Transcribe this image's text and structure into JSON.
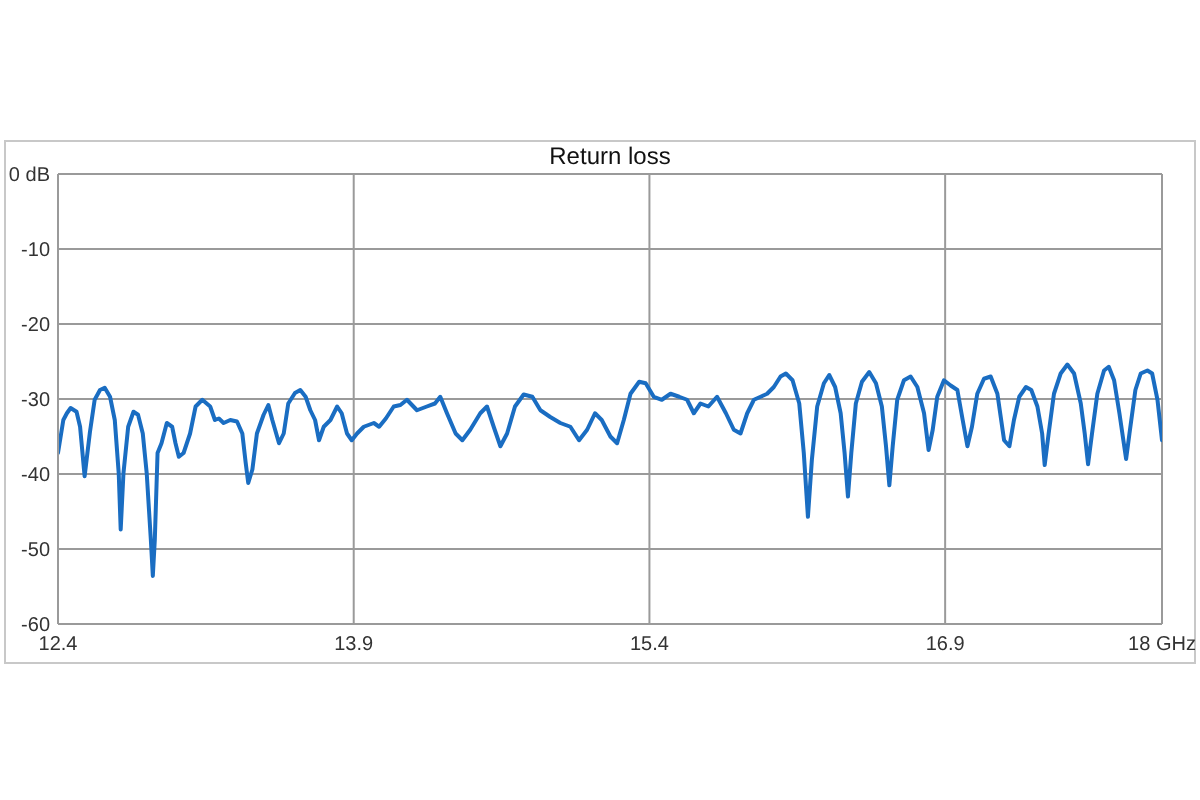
{
  "chart_data": {
    "type": "line",
    "title": "Return loss",
    "marker": "none",
    "grid": true,
    "xlim": [
      12.4,
      18
    ],
    "xticks": [
      12.4,
      13.9,
      15.4,
      16.9,
      {
        "value": 18,
        "label": "18 GHz"
      }
    ],
    "ylim": [
      -60,
      0
    ],
    "yticks": [
      {
        "value": 0,
        "label": "0 dB"
      },
      -10,
      -20,
      -30,
      -40,
      -50,
      -60
    ],
    "x": [
      12.4,
      12.427,
      12.445,
      12.464,
      12.494,
      12.512,
      12.535,
      12.562,
      12.586,
      12.613,
      12.637,
      12.664,
      12.688,
      12.708,
      12.718,
      12.732,
      12.756,
      12.783,
      12.806,
      12.83,
      12.85,
      12.871,
      12.881,
      12.891,
      12.905,
      12.925,
      12.952,
      12.979,
      12.996,
      13.013,
      13.037,
      13.07,
      13.098,
      13.132,
      13.172,
      13.196,
      13.216,
      13.24,
      13.274,
      13.308,
      13.335,
      13.352,
      13.365,
      13.386,
      13.409,
      13.443,
      13.467,
      13.487,
      13.521,
      13.545,
      13.568,
      13.602,
      13.629,
      13.656,
      13.68,
      13.704,
      13.724,
      13.748,
      13.782,
      13.816,
      13.839,
      13.866,
      13.89,
      13.917,
      13.951,
      14.002,
      14.029,
      14.063,
      14.103,
      14.137,
      14.17,
      14.221,
      14.271,
      14.312,
      14.339,
      14.373,
      14.417,
      14.451,
      14.491,
      14.542,
      14.576,
      14.61,
      14.644,
      14.678,
      14.718,
      14.762,
      14.806,
      14.847,
      14.897,
      14.948,
      14.999,
      15.043,
      15.084,
      15.124,
      15.158,
      15.202,
      15.236,
      15.27,
      15.304,
      15.348,
      15.381,
      15.422,
      15.463,
      15.507,
      15.551,
      15.591,
      15.625,
      15.659,
      15.699,
      15.743,
      15.788,
      15.828,
      15.862,
      15.896,
      15.93,
      15.964,
      15.997,
      16.031,
      16.065,
      16.092,
      16.126,
      16.16,
      16.183,
      16.204,
      16.224,
      16.251,
      16.285,
      16.312,
      16.342,
      16.37,
      16.39,
      16.407,
      16.424,
      16.447,
      16.478,
      16.515,
      16.549,
      16.579,
      16.6,
      16.617,
      16.634,
      16.657,
      16.691,
      16.725,
      16.759,
      16.793,
      16.816,
      16.837,
      16.86,
      16.894,
      16.928,
      16.962,
      16.989,
      17.013,
      17.036,
      17.063,
      17.097,
      17.131,
      17.165,
      17.199,
      17.226,
      17.249,
      17.276,
      17.31,
      17.337,
      17.368,
      17.392,
      17.405,
      17.425,
      17.452,
      17.486,
      17.52,
      17.554,
      17.588,
      17.608,
      17.625,
      17.645,
      17.672,
      17.706,
      17.73,
      17.757,
      17.784,
      17.804,
      17.818,
      17.835,
      17.865,
      17.892,
      17.926,
      17.95,
      17.977,
      18.0
    ],
    "series": [
      {
        "color": "#1a6dc2",
        "values": [
          -37.2,
          -32.8,
          -31.9,
          -31.2,
          -31.7,
          -33.7,
          -40.3,
          -34.4,
          -30.1,
          -28.8,
          -28.5,
          -29.7,
          -32.8,
          -39.9,
          -47.4,
          -39.9,
          -33.7,
          -31.7,
          -32.1,
          -34.6,
          -39.9,
          -48.8,
          -53.6,
          -48.8,
          -37.2,
          -35.9,
          -33.2,
          -33.7,
          -35.9,
          -37.7,
          -37.2,
          -34.6,
          -31.0,
          -30.1,
          -31.0,
          -32.8,
          -32.6,
          -33.2,
          -32.8,
          -33.0,
          -34.6,
          -38.5,
          -41.2,
          -39.4,
          -34.6,
          -32.1,
          -30.8,
          -32.8,
          -35.9,
          -34.6,
          -30.6,
          -29.2,
          -28.8,
          -29.7,
          -31.5,
          -32.8,
          -35.5,
          -33.7,
          -32.8,
          -31.0,
          -31.9,
          -34.6,
          -35.5,
          -34.6,
          -33.7,
          -33.2,
          -33.7,
          -32.6,
          -31.0,
          -30.8,
          -30.1,
          -31.5,
          -31.0,
          -30.6,
          -29.7,
          -31.9,
          -34.6,
          -35.5,
          -34.1,
          -31.9,
          -31.0,
          -33.7,
          -36.3,
          -34.6,
          -31.0,
          -29.4,
          -29.7,
          -31.5,
          -32.4,
          -33.2,
          -33.7,
          -35.5,
          -34.1,
          -31.9,
          -32.8,
          -35.0,
          -35.9,
          -32.8,
          -29.3,
          -27.7,
          -27.9,
          -29.7,
          -30.1,
          -29.3,
          -29.7,
          -30.1,
          -31.9,
          -30.6,
          -31.0,
          -29.7,
          -31.9,
          -34.1,
          -34.6,
          -31.9,
          -30.1,
          -29.7,
          -29.3,
          -28.4,
          -27.0,
          -26.6,
          -27.5,
          -30.6,
          -37.2,
          -45.7,
          -38.1,
          -31.0,
          -27.9,
          -26.8,
          -28.4,
          -31.9,
          -37.2,
          -43.0,
          -37.2,
          -30.6,
          -27.7,
          -26.4,
          -27.9,
          -31.0,
          -36.3,
          -41.5,
          -36.3,
          -30.1,
          -27.5,
          -27.0,
          -28.4,
          -31.9,
          -36.8,
          -34.1,
          -29.7,
          -27.5,
          -28.2,
          -28.8,
          -32.8,
          -36.3,
          -33.7,
          -29.3,
          -27.3,
          -27.0,
          -29.3,
          -35.5,
          -36.3,
          -32.8,
          -29.7,
          -28.4,
          -28.8,
          -31.0,
          -34.6,
          -38.8,
          -34.6,
          -29.3,
          -26.6,
          -25.4,
          -26.6,
          -30.6,
          -34.6,
          -38.7,
          -34.6,
          -29.3,
          -26.2,
          -25.7,
          -27.5,
          -31.9,
          -35.5,
          -38.0,
          -34.6,
          -28.8,
          -26.6,
          -26.2,
          -26.6,
          -30.1,
          -35.5
        ]
      }
    ]
  }
}
